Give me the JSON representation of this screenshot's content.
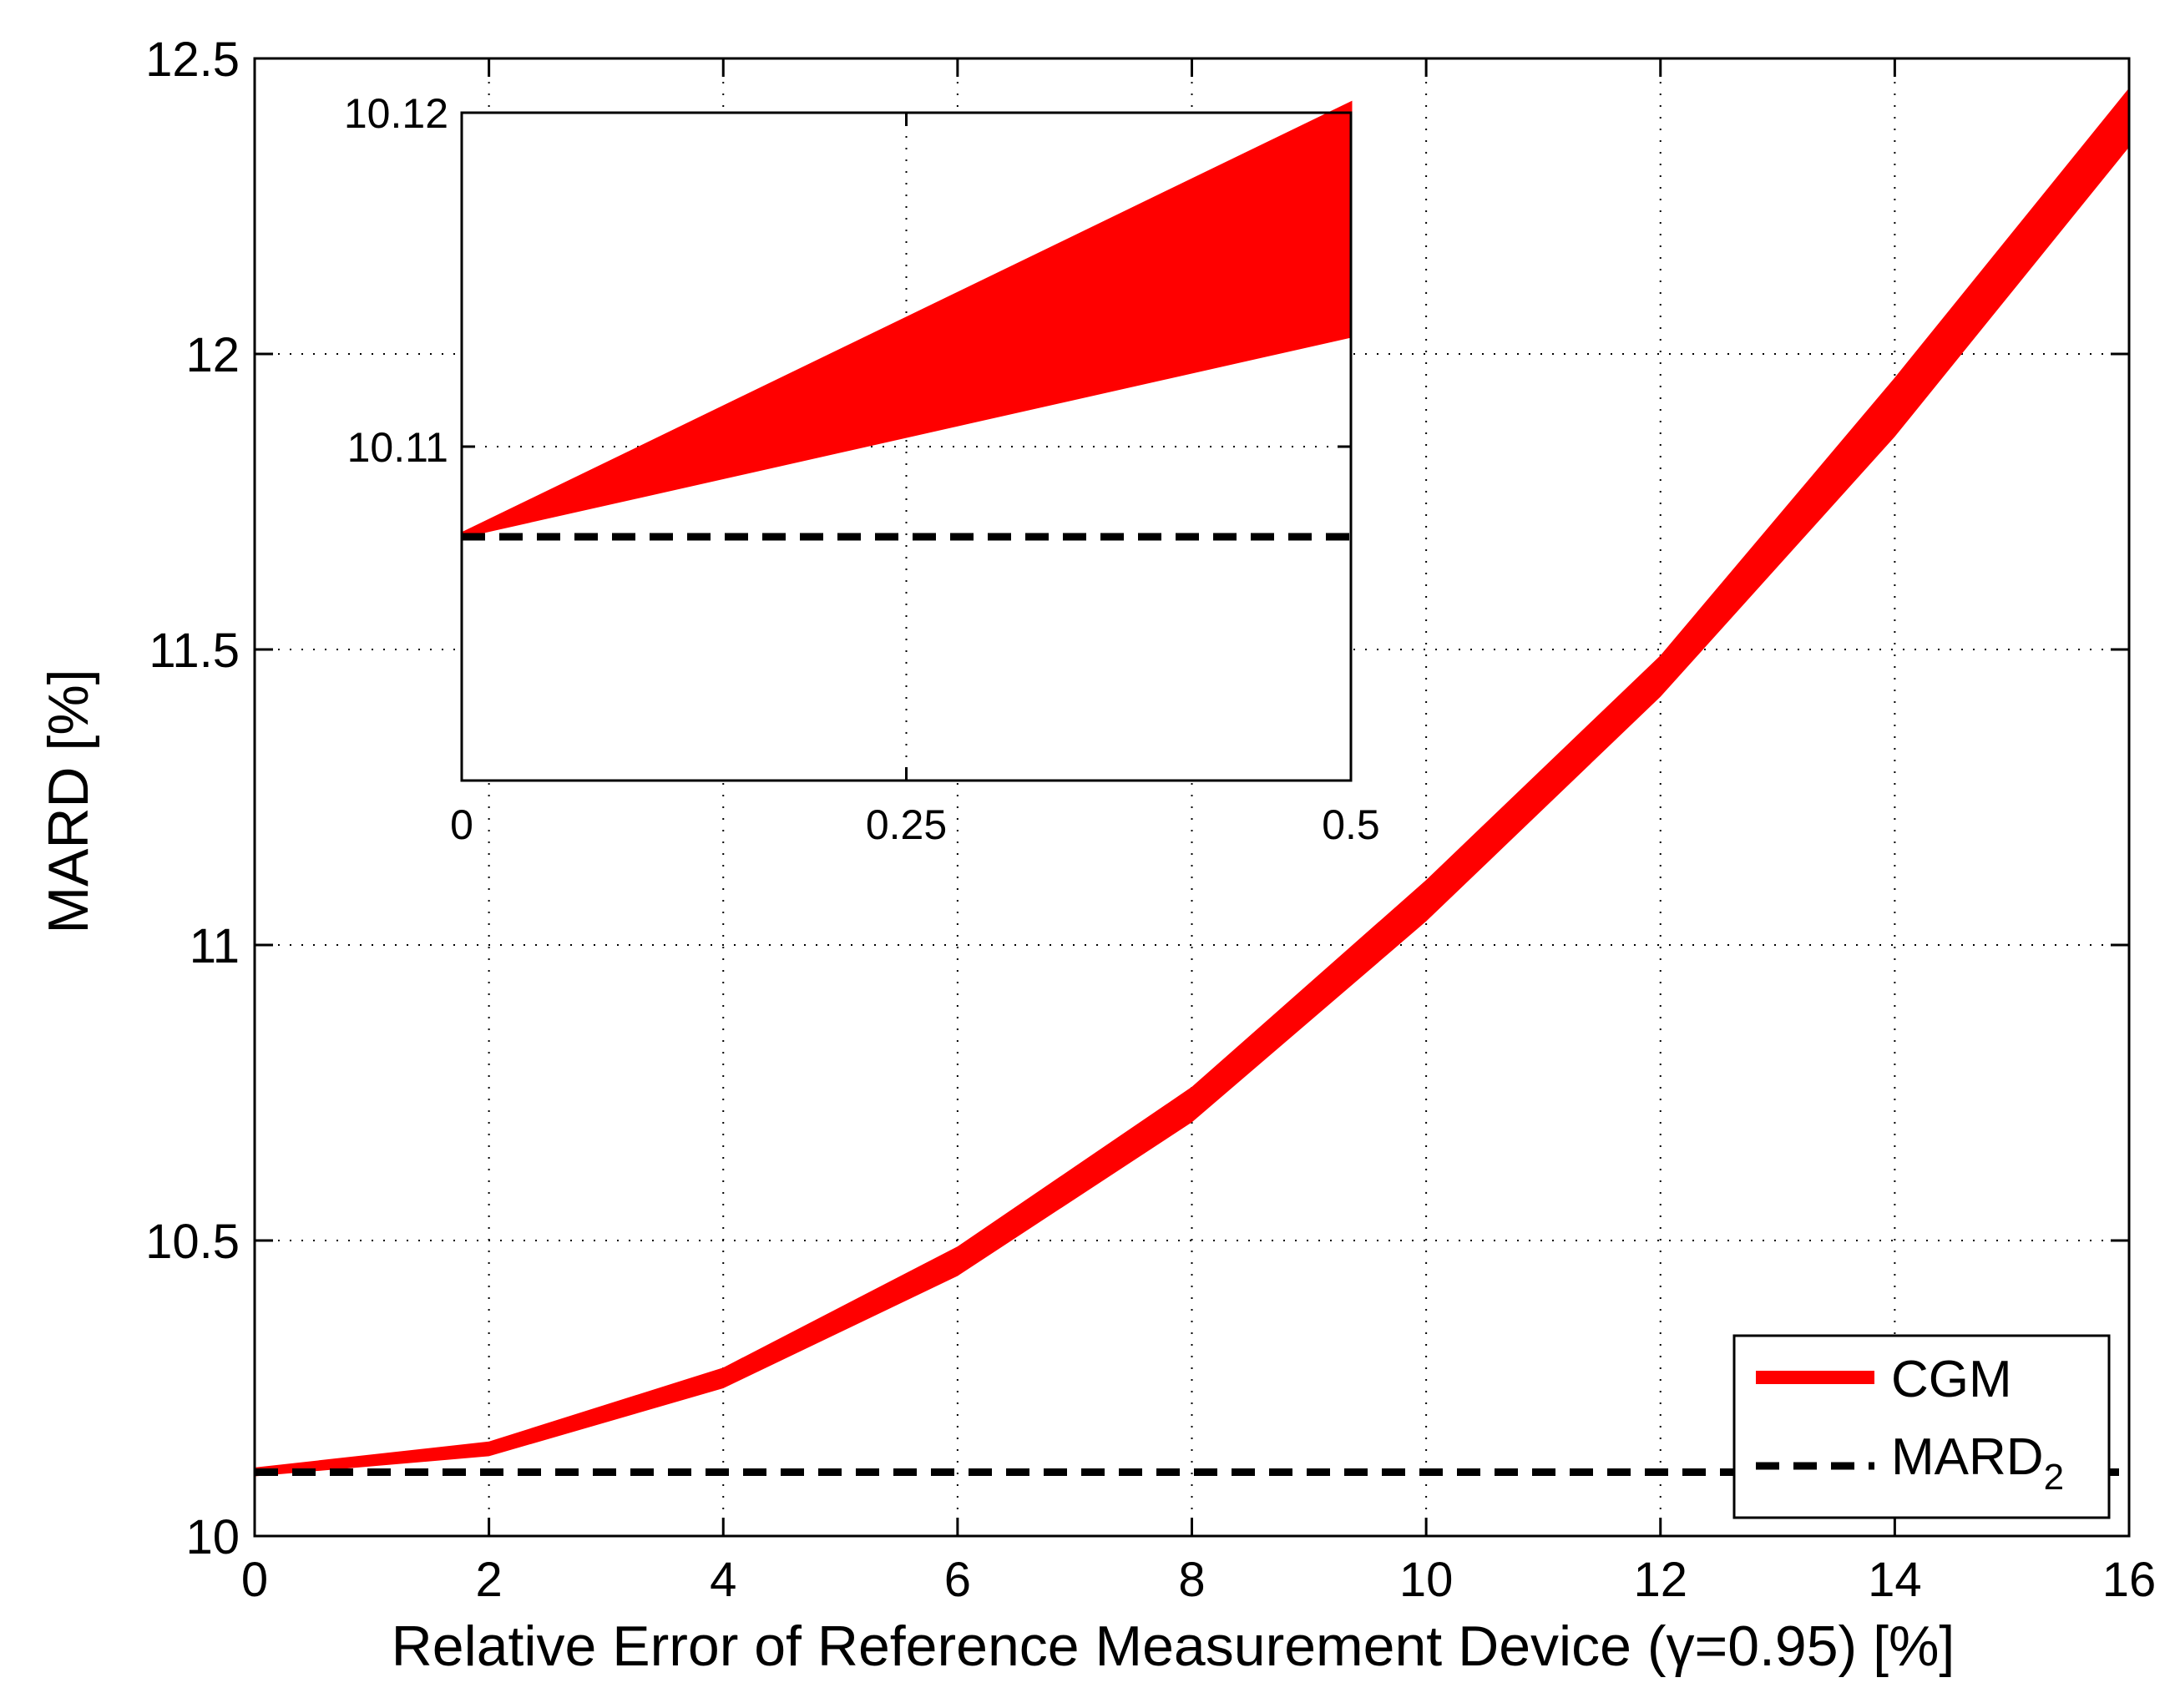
{
  "chart_data": {
    "type": "area",
    "xlabel": "Relative Error of Reference Measurement Device (γ=0.95) [%]",
    "ylabel": "MARD [%]",
    "xlim": [
      0,
      16
    ],
    "ylim": [
      10,
      12.5
    ],
    "xticks": [
      "0",
      "2",
      "4",
      "6",
      "8",
      "10",
      "12",
      "14",
      "16"
    ],
    "yticks": [
      "10",
      "10.5",
      "11",
      "11.5",
      "12",
      "12.5"
    ],
    "grid": true,
    "legend_position": "bottom-right",
    "series": [
      {
        "name": "CGM",
        "style": "band",
        "color": "#ff0000",
        "x": [
          0,
          2,
          4,
          6,
          8,
          10,
          12,
          14,
          16
        ],
        "lower": [
          10.101,
          10.135,
          10.25,
          10.44,
          10.7,
          11.04,
          11.42,
          11.86,
          12.35
        ],
        "upper": [
          10.116,
          10.16,
          10.285,
          10.49,
          10.76,
          11.11,
          11.49,
          11.96,
          12.45
        ]
      },
      {
        "name": "MARD",
        "name_subscript": "2",
        "style": "dashed",
        "color": "#000000",
        "x": [
          0,
          16
        ],
        "y": [
          10.108,
          10.108
        ]
      }
    ],
    "inset": {
      "xlim": [
        0,
        0.5
      ],
      "ylim": [
        10.1,
        10.12
      ],
      "xticks": [
        "0",
        "0.25",
        "0.5"
      ],
      "yticks": [
        "10.11",
        "10.12"
      ],
      "band": {
        "x": [
          0,
          0.5
        ],
        "lower": [
          10.1073,
          10.1133
        ],
        "upper": [
          10.1074,
          10.1203
        ]
      },
      "reference_y": 10.1073
    }
  }
}
